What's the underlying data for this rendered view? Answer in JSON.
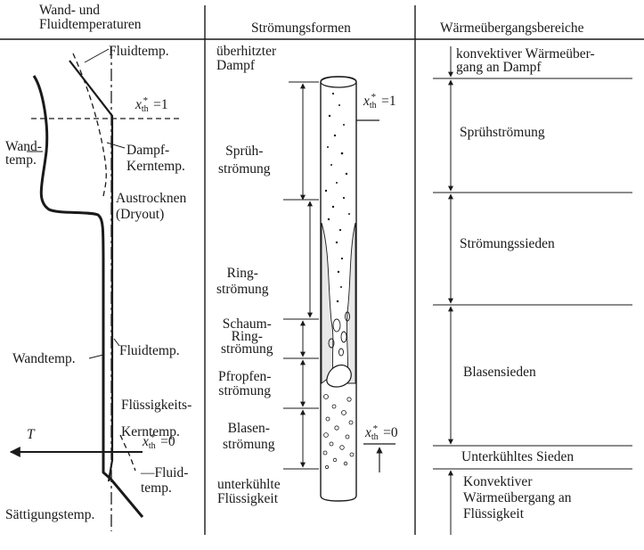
{
  "headers": {
    "col1": "Wand- und\nFluidtemperaturen",
    "col2": "Strömungsformen",
    "col3": "Wärmeübergangsbereiche"
  },
  "col1": {
    "fluid_temp_top": "Fluidtemp.",
    "xth_equals_1": "=1",
    "wall_temp_upper": "Wand-\ntemp.",
    "vapor_core_temp": "Dampf-\nKerntemp.",
    "dryout": "Austrocknen\n(Dryout)",
    "wall_temp_lower": "Wandtemp.",
    "fluid_temp_mid": "Fluidtemp.",
    "liquid_core_temp": "Flüssigkeits-\nKerntemp.",
    "axis_T": "T",
    "xth_equals_0": "=0",
    "fluid_temp_bottom": "—Fluid-\ntemp.",
    "saturation_temp": "Sättigungstemp."
  },
  "xth_symbol": {
    "x": "x",
    "sub": "th",
    "sup": "*"
  },
  "col2": {
    "superheated_vapor": "überhitzter\nDampf",
    "spray_flow": "Sprüh-\nströmung",
    "annular_flow": "Ring-\nströmung",
    "foam_annular_flow": "Schaum-\nRing-\nströmung",
    "slug_flow": "Pfropfen-\nströmung",
    "bubble_flow": "Blasen-\nströmung",
    "subcooled_liquid": "unterkühlte\nFlüssigkeit",
    "xth1_value": "=1",
    "xth0_value": "=0"
  },
  "col3": {
    "convective_vapor": "konvektiver Wärmeüber-\ngang an Dampf",
    "spray_flow_region": "Sprühströmung",
    "flow_boiling": "Strömungssieden",
    "nucleate_boiling": "Blasensieden",
    "subcooled_boiling": "Unterkühltes Sieden",
    "convective_liquid": "Konvektiver\nWärmeübergang an\nFlüssigkeit"
  }
}
